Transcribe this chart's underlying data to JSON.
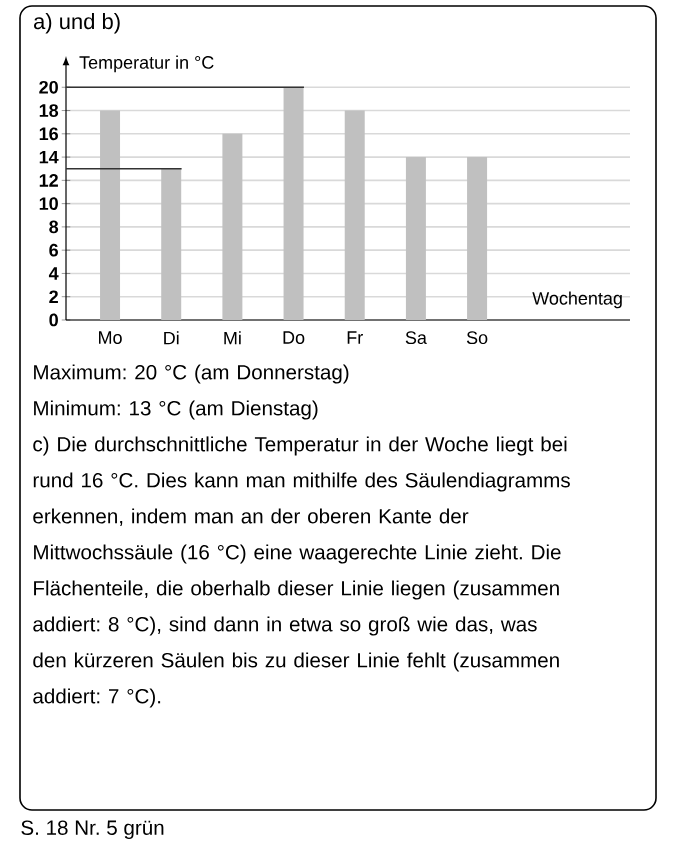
{
  "chart_data": {
    "type": "bar",
    "title": "a) und b)",
    "ylabel": "Temperatur in °C",
    "xlabel": "Wochentag",
    "categories": [
      "Mo",
      "Di",
      "Mi",
      "Do",
      "Fr",
      "Sa",
      "So"
    ],
    "values": [
      18,
      13,
      16,
      20,
      18,
      14,
      14
    ],
    "color": "#c0c0c0",
    "ylim": [
      0,
      22
    ],
    "yticks": [
      0,
      2,
      4,
      6,
      8,
      10,
      12,
      14,
      16,
      18,
      20
    ],
    "grid": "y",
    "ref_lines": [
      {
        "axis": "y",
        "value": 20,
        "color": "#333333"
      },
      {
        "axis": "y",
        "value": 13,
        "color": "#333333"
      }
    ],
    "annotations": [
      "Maximum: 20 °C (am Donnerstag)",
      "Minimum: 13 °C (am Dienstag)",
      "c) Die durchschnittliche Temperatur in der Woche liegt bei rund 16 °C. Dies kann man mithilfe des Säulendiagramms erkennen, indem man an der oberen Kante der Mittwochssäule (16 °C) eine waagerechte Linie zieht. Die Flächenteile, die oberhalb dieser Linie liegen (zusammen addiert: 8 °C), sind dann in etwa so groß wie das, was den kürzeren Säulen bis zu dieser Linie fehlt (zusammen addiert: 7 °C).",
      "S. 18 Nr. 5 grün"
    ]
  }
}
